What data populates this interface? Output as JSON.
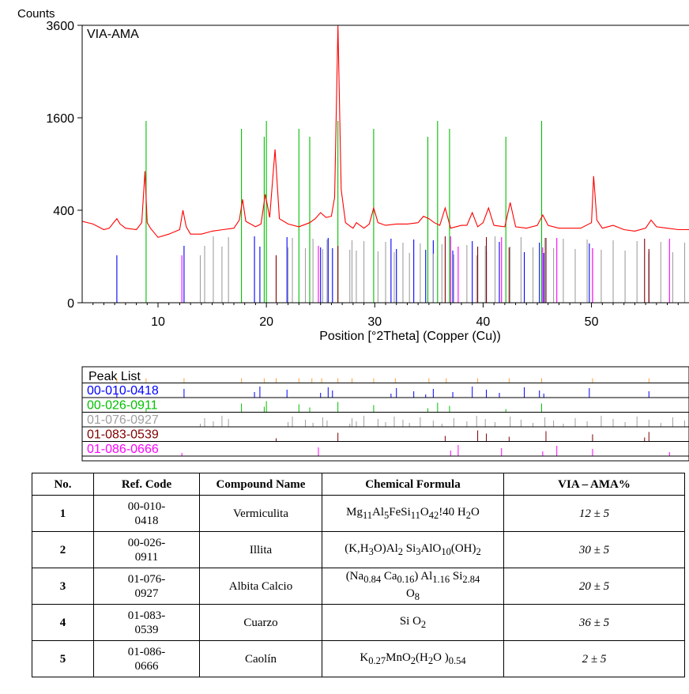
{
  "chart_data": [
    {
      "type": "line",
      "sample_label": "VIA-AMA",
      "ylabel": "Counts",
      "xlabel": "Position [°2Theta] (Copper (Cu))",
      "xlim": [
        3,
        59
      ],
      "y_scale": "sqrt",
      "ylim": [
        0,
        3600
      ],
      "x_ticks": [
        "10",
        "20",
        "30",
        "40",
        "50"
      ],
      "y_ticks": [
        "0",
        "400",
        "1600",
        "3600"
      ],
      "series": [
        {
          "color": "#ff0000",
          "x": [
            3,
            4,
            5,
            5.5,
            6,
            6.2,
            6.5,
            7,
            8,
            8.5,
            8.8,
            9,
            9.3,
            10,
            11,
            12,
            12.3,
            12.6,
            13,
            14,
            15,
            16,
            17,
            17.5,
            17.8,
            18.1,
            19,
            19.5,
            19.9,
            20.3,
            20.8,
            21.2,
            22,
            23,
            24,
            24.5,
            25,
            25.5,
            26,
            26.3,
            26.6,
            26.9,
            27.3,
            27.8,
            28,
            28.3,
            29,
            29.5,
            29.9,
            30.3,
            31,
            32,
            33,
            34,
            34.5,
            35,
            35.5,
            36,
            36.5,
            37,
            38,
            38.5,
            39,
            39.5,
            40,
            40.5,
            41,
            42,
            42.5,
            43,
            44,
            45,
            45.5,
            46,
            47,
            48,
            49,
            50,
            50.2,
            50.5,
            51,
            52,
            53,
            54,
            55,
            55.5,
            56,
            57,
            58,
            59
          ],
          "y": [
            310,
            290,
            250,
            260,
            310,
            330,
            290,
            260,
            250,
            300,
            810,
            300,
            260,
            200,
            220,
            250,
            400,
            270,
            220,
            220,
            240,
            250,
            260,
            320,
            500,
            310,
            270,
            290,
            550,
            340,
            1100,
            330,
            290,
            270,
            300,
            330,
            380,
            340,
            350,
            520,
            3600,
            600,
            300,
            270,
            260,
            300,
            260,
            290,
            420,
            300,
            280,
            290,
            290,
            300,
            350,
            330,
            300,
            280,
            420,
            260,
            280,
            280,
            380,
            270,
            300,
            420,
            280,
            270,
            470,
            270,
            260,
            280,
            360,
            280,
            260,
            260,
            260,
            300,
            750,
            320,
            260,
            280,
            250,
            240,
            260,
            320,
            270,
            260,
            250,
            250
          ]
        }
      ],
      "reference_patterns": [
        {
          "name": "00-010-0418",
          "color": "#0000ff",
          "x": [
            6.2,
            12.4,
            18.9,
            19.4,
            21.9,
            25.0,
            25.7,
            26.1,
            31.5,
            32.0,
            33.6,
            34.7,
            35.4,
            37.2,
            39.0,
            40.3,
            41.5,
            43.8,
            45.2,
            45.6,
            49.8,
            55.3
          ]
        },
        {
          "name": "00-026-0911",
          "color": "#00c000",
          "x": [
            8.9,
            17.7,
            19.8,
            20.0,
            23.0,
            24.0,
            26.6,
            29.9,
            34.9,
            35.8,
            36.9,
            42.1,
            45.4
          ]
        },
        {
          "name": "01-076-0927",
          "color": "#a0a0a0",
          "x": [
            13.9,
            14.3,
            15.1,
            15.9,
            16.5,
            22.0,
            22.4,
            23.6,
            24.3,
            25.2,
            25.6,
            27.7,
            27.9,
            28.3,
            29.0,
            30.3,
            31.0,
            31.8,
            32.6,
            33.2,
            34.2,
            35.4,
            36.2,
            37.3,
            38.5,
            39.4,
            40.2,
            41.1,
            42.5,
            43.5,
            44.6,
            45.7,
            46.5,
            47.4,
            48.5,
            49.6,
            50.9,
            52.0,
            53.1,
            54.2,
            55.3,
            56.4,
            57.5,
            58.6
          ]
        },
        {
          "name": "01-083-0539",
          "color": "#800000",
          "x": [
            20.9,
            26.6,
            36.5,
            39.5,
            40.3,
            42.4,
            45.8,
            50.1,
            54.9,
            55.3
          ]
        },
        {
          "name": "01-086-0666",
          "color": "#ff00ff",
          "x": [
            12.2,
            24.8,
            37.0,
            37.7,
            41.7,
            45.5,
            46.8,
            50.1,
            57.2
          ]
        }
      ]
    },
    {
      "type": "stick",
      "title": "Peak List",
      "peak_list": {
        "color": "#ffa040",
        "x": [
          6.2,
          8.9,
          12.4,
          17.7,
          19.8,
          20.9,
          23.0,
          24.2,
          25.1,
          26.6,
          27.9,
          29.9,
          31.9,
          35.0,
          36.6,
          39.5,
          42.4,
          45.4,
          50.1,
          55.3
        ]
      },
      "rows": [
        {
          "label": "00-010-0418",
          "color": "#0000ff"
        },
        {
          "label": "00-026-0911",
          "color": "#00c000"
        },
        {
          "label": "01-076-0927",
          "color": "#a0a0a0"
        },
        {
          "label": "01-083-0539",
          "color": "#800000"
        },
        {
          "label": "01-086-0666",
          "color": "#ff00ff"
        }
      ]
    }
  ],
  "table": {
    "headers": [
      "No.",
      "Ref. Code",
      "Compound Name",
      "Chemical Formula",
      "VIA – AMA%"
    ],
    "rows": [
      {
        "no": "1",
        "ref1": "00-010-",
        "ref2": "0418",
        "name": "Vermiculita",
        "pct": "12 ± 5"
      },
      {
        "no": "2",
        "ref1": "00-026-",
        "ref2": "0911",
        "name": "Illita",
        "pct": "30 ± 5"
      },
      {
        "no": "3",
        "ref1": "01-076-",
        "ref2": "0927",
        "name": "Albita Calcio",
        "pct": "20 ± 5"
      },
      {
        "no": "4",
        "ref1": "01-083-",
        "ref2": "0539",
        "name": "Cuarzo",
        "pct": "36 ± 5"
      },
      {
        "no": "5",
        "ref1": "01-086-",
        "ref2": "0666",
        "name": "Caolín",
        "pct": "2 ± 5"
      }
    ],
    "formulas": [
      "Mg<sub>11</sub>Al<sub>5</sub>FeSi<sub>11</sub>O<sub>42</sub>!40 H<sub>2</sub>O",
      "(K,H<sub>3</sub>O)Al<sub>2</sub> Si<sub>3</sub>AlO<sub>10</sub>(OH)<sub>2</sub>",
      "(Na<sub>0.84</sub> Ca<sub>0.16</sub>) Al<sub>1.16</sub> Si<sub>2.84</sub><br>O<sub>8</sub>",
      "Si O<sub>2</sub>",
      "K<sub>0.27</sub>MnO<sub>2</sub>(H<sub>2</sub>O )<sub>0.54</sub>"
    ]
  }
}
